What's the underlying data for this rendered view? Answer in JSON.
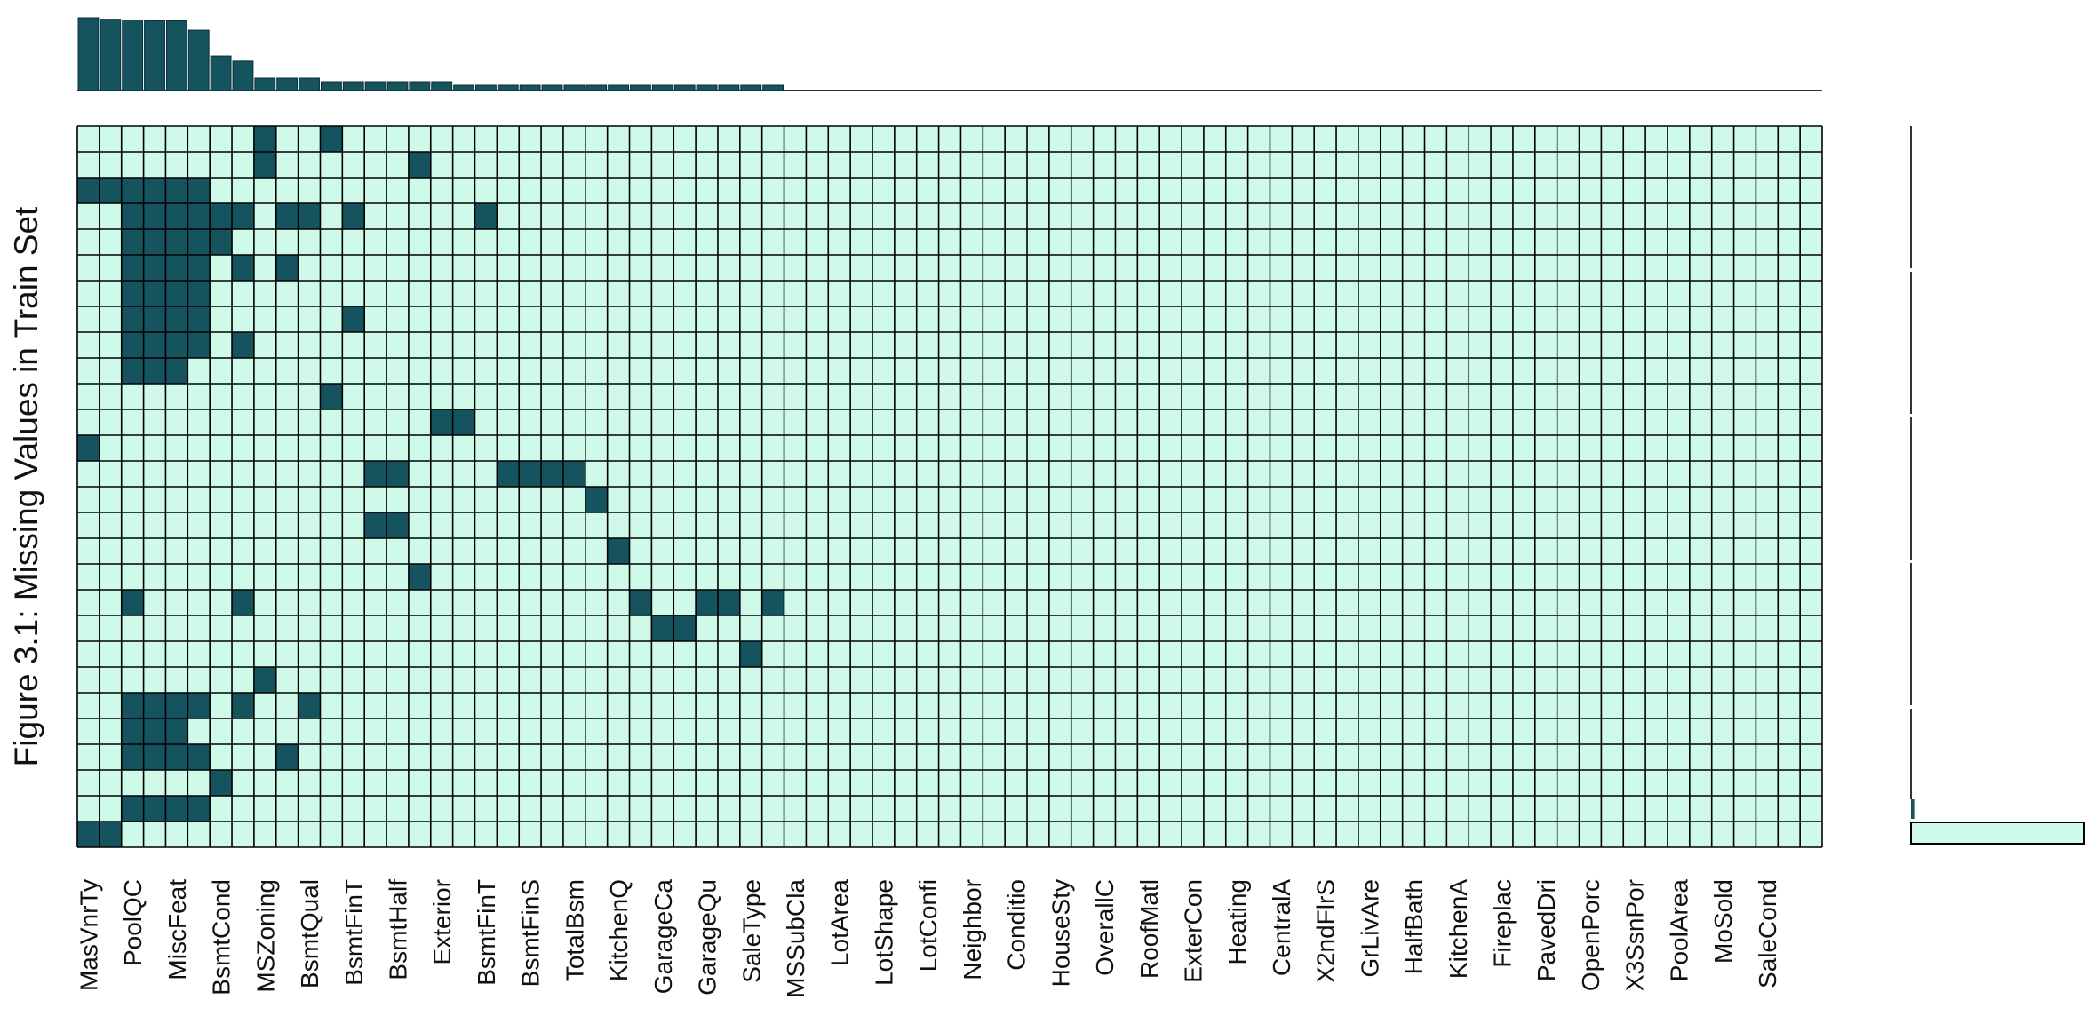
{
  "chart_data": {
    "type": "heatmap",
    "title": "",
    "ylabel": "Figure 3.1: Missing Values in Train Set",
    "xlabel": "",
    "colors": {
      "missing": "#15535f",
      "present": "#cffaea",
      "grid": "#000000"
    },
    "num_columns": 79,
    "num_rows": 28,
    "labeled_columns": [
      {
        "index": 0,
        "label": "MasVnrTy"
      },
      {
        "index": 2,
        "label": "PoolQC"
      },
      {
        "index": 4,
        "label": "MiscFeat"
      },
      {
        "index": 6,
        "label": "BsmtCond"
      },
      {
        "index": 8,
        "label": "MSZoning"
      },
      {
        "index": 10,
        "label": "BsmtQual"
      },
      {
        "index": 12,
        "label": "BsmtFinT"
      },
      {
        "index": 14,
        "label": "BsmtHalf"
      },
      {
        "index": 16,
        "label": "Exterior"
      },
      {
        "index": 18,
        "label": "BsmtFinT"
      },
      {
        "index": 20,
        "label": "BsmtFinS"
      },
      {
        "index": 22,
        "label": "TotalBsm"
      },
      {
        "index": 24,
        "label": "KitchenQ"
      },
      {
        "index": 26,
        "label": "GarageCa"
      },
      {
        "index": 28,
        "label": "GarageQu"
      },
      {
        "index": 30,
        "label": "SaleType"
      },
      {
        "index": 32,
        "label": "MSSubCla"
      },
      {
        "index": 34,
        "label": "LotArea"
      },
      {
        "index": 36,
        "label": "LotShape"
      },
      {
        "index": 38,
        "label": "LotConfi"
      },
      {
        "index": 40,
        "label": "Neighbor"
      },
      {
        "index": 42,
        "label": "Conditio"
      },
      {
        "index": 44,
        "label": "HouseSty"
      },
      {
        "index": 46,
        "label": "OverallC"
      },
      {
        "index": 48,
        "label": "RoofMatl"
      },
      {
        "index": 50,
        "label": "ExterCon"
      },
      {
        "index": 52,
        "label": "Heating"
      },
      {
        "index": 54,
        "label": "CentralA"
      },
      {
        "index": 56,
        "label": "X2ndFlrS"
      },
      {
        "index": 58,
        "label": "GrLivAre"
      },
      {
        "index": 60,
        "label": "HalfBath"
      },
      {
        "index": 62,
        "label": "KitchenA"
      },
      {
        "index": 64,
        "label": "Fireplac"
      },
      {
        "index": 66,
        "label": "PavedDri"
      },
      {
        "index": 68,
        "label": "OpenPorc"
      },
      {
        "index": 70,
        "label": "X3SsnPor"
      },
      {
        "index": 72,
        "label": "PoolArea"
      },
      {
        "index": 74,
        "label": "MoSold"
      },
      {
        "index": 76,
        "label": "SaleCond"
      }
    ],
    "missing_cells": [
      [
        0,
        8
      ],
      [
        0,
        11
      ],
      [
        1,
        8
      ],
      [
        1,
        15
      ],
      [
        2,
        0
      ],
      [
        2,
        1
      ],
      [
        2,
        2
      ],
      [
        2,
        3
      ],
      [
        2,
        4
      ],
      [
        2,
        5
      ],
      [
        3,
        2
      ],
      [
        3,
        3
      ],
      [
        3,
        4
      ],
      [
        3,
        5
      ],
      [
        3,
        6
      ],
      [
        3,
        7
      ],
      [
        3,
        9
      ],
      [
        3,
        10
      ],
      [
        3,
        12
      ],
      [
        3,
        18
      ],
      [
        4,
        2
      ],
      [
        4,
        3
      ],
      [
        4,
        4
      ],
      [
        4,
        5
      ],
      [
        4,
        6
      ],
      [
        5,
        2
      ],
      [
        5,
        3
      ],
      [
        5,
        4
      ],
      [
        5,
        5
      ],
      [
        5,
        7
      ],
      [
        5,
        9
      ],
      [
        6,
        2
      ],
      [
        6,
        3
      ],
      [
        6,
        4
      ],
      [
        6,
        5
      ],
      [
        7,
        2
      ],
      [
        7,
        3
      ],
      [
        7,
        4
      ],
      [
        7,
        5
      ],
      [
        7,
        12
      ],
      [
        8,
        2
      ],
      [
        8,
        3
      ],
      [
        8,
        4
      ],
      [
        8,
        5
      ],
      [
        8,
        7
      ],
      [
        9,
        2
      ],
      [
        9,
        3
      ],
      [
        9,
        4
      ],
      [
        10,
        11
      ],
      [
        11,
        16
      ],
      [
        11,
        17
      ],
      [
        12,
        0
      ],
      [
        13,
        13
      ],
      [
        13,
        14
      ],
      [
        13,
        19
      ],
      [
        13,
        20
      ],
      [
        13,
        21
      ],
      [
        13,
        22
      ],
      [
        14,
        23
      ],
      [
        15,
        13
      ],
      [
        15,
        14
      ],
      [
        16,
        24
      ],
      [
        17,
        15
      ],
      [
        18,
        2
      ],
      [
        18,
        7
      ],
      [
        18,
        25
      ],
      [
        18,
        28
      ],
      [
        18,
        29
      ],
      [
        18,
        31
      ],
      [
        19,
        26
      ],
      [
        19,
        27
      ],
      [
        20,
        30
      ],
      [
        21,
        8
      ],
      [
        22,
        2
      ],
      [
        22,
        3
      ],
      [
        22,
        4
      ],
      [
        22,
        5
      ],
      [
        22,
        7
      ],
      [
        22,
        10
      ],
      [
        23,
        2
      ],
      [
        23,
        3
      ],
      [
        23,
        4
      ],
      [
        24,
        2
      ],
      [
        24,
        3
      ],
      [
        24,
        4
      ],
      [
        24,
        5
      ],
      [
        24,
        9
      ],
      [
        25,
        6
      ],
      [
        26,
        2
      ],
      [
        26,
        3
      ],
      [
        26,
        4
      ],
      [
        26,
        5
      ],
      [
        27,
        0
      ],
      [
        27,
        1
      ]
    ],
    "top_bar_values": [
      99,
      97,
      96,
      95,
      95,
      82,
      47,
      40,
      28,
      28,
      26,
      24,
      24,
      24,
      24,
      24,
      24,
      20,
      20,
      20,
      20,
      20,
      20,
      20,
      20,
      20,
      20,
      20,
      20,
      20,
      20,
      20
    ],
    "side_bar_values": [
      {
        "label": "",
        "value": 0.06
      },
      {
        "label": "",
        "value": 1.0
      }
    ]
  }
}
